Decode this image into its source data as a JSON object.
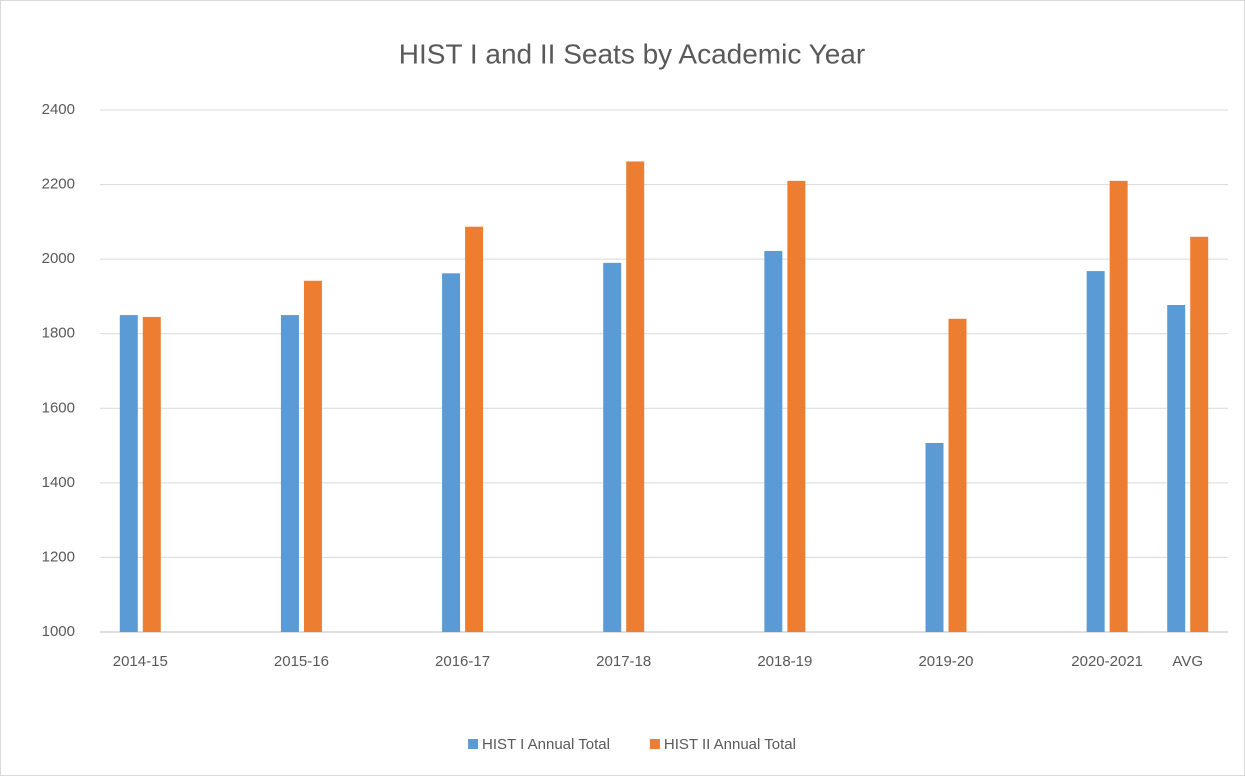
{
  "chart_data": {
    "type": "bar",
    "title": "HIST I and II Seats by Academic Year",
    "categories": [
      "2014-15",
      null,
      "2015-16",
      null,
      "2016-17",
      null,
      "2017-18",
      null,
      "2018-19",
      null,
      "2019-20",
      null,
      "2020-2021",
      "AVG"
    ],
    "series": [
      {
        "name": "HIST I Annual Total",
        "color": "#5b9bd5",
        "values": [
          1850,
          null,
          1850,
          null,
          1962,
          null,
          1990,
          null,
          2022,
          null,
          1507,
          null,
          1968,
          1877
        ]
      },
      {
        "name": "HIST II Annual Total",
        "color": "#ed7d31",
        "values": [
          1845,
          null,
          1942,
          null,
          2087,
          null,
          2262,
          null,
          2210,
          null,
          1840,
          null,
          2210,
          2060
        ]
      }
    ],
    "ylim": [
      1000,
      2400
    ],
    "yticks": [
      1000,
      1200,
      1400,
      1600,
      1800,
      2000,
      2200,
      2400
    ],
    "grid": true,
    "legend": "bottom"
  }
}
